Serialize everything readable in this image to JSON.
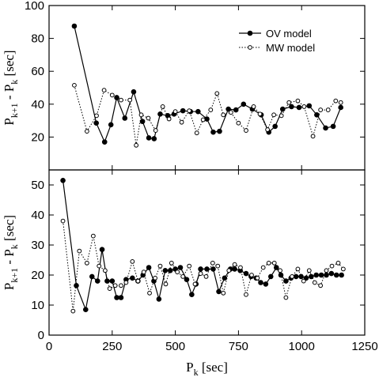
{
  "chart_data": [
    {
      "type": "line",
      "panel": "top",
      "ylabel": {
        "main": "P",
        "sub1": "k+1",
        "mid": " - P",
        "sub2": "k",
        "unit": " [sec]"
      },
      "xlim": [
        0,
        1250
      ],
      "ylim": [
        0,
        100
      ],
      "y_ticks": [
        0,
        20,
        40,
        60,
        80,
        100
      ],
      "legend": {
        "position": "top-right",
        "entries": [
          "OV model",
          "MW model"
        ]
      },
      "series": [
        {
          "name": "OV model",
          "style": "solid line, filled circles",
          "x": [
            100,
            187,
            220,
            245,
            268,
            300,
            335,
            370,
            395,
            416,
            440,
            470,
            495,
            530,
            560,
            590,
            625,
            650,
            675,
            710,
            740,
            770,
            805,
            840,
            870,
            895,
            925,
            960,
            990,
            1030,
            1060,
            1095,
            1125,
            1155
          ],
          "y": [
            87.5,
            28.5,
            17,
            27.5,
            44,
            31.5,
            47.5,
            29.5,
            19.5,
            19,
            34,
            33,
            34,
            36,
            35.5,
            35.5,
            31,
            23,
            23.5,
            37,
            36.5,
            40,
            37,
            33.5,
            23,
            26.5,
            37,
            38.5,
            38,
            39,
            33.5,
            25.5,
            26.5,
            38
          ]
        },
        {
          "name": "MW model",
          "style": "dotted line, open circles",
          "x": [
            100,
            150,
            188,
            218,
            250,
            285,
            320,
            345,
            365,
            393,
            422,
            450,
            475,
            500,
            525,
            555,
            585,
            610,
            640,
            665,
            690,
            720,
            750,
            780,
            810,
            835,
            865,
            890,
            920,
            950,
            985,
            1010,
            1045,
            1075,
            1105,
            1135,
            1155
          ],
          "y": [
            51.5,
            23.5,
            33,
            48.5,
            45.5,
            42.5,
            42.5,
            15,
            33.5,
            31.5,
            24,
            38.5,
            31,
            35.5,
            29,
            36,
            22.5,
            30.5,
            36.5,
            46.5,
            33.5,
            35,
            28.5,
            24,
            38.5,
            34,
            24.5,
            33.5,
            33,
            41,
            42,
            38.5,
            20.5,
            36.5,
            36.5,
            42,
            41
          ]
        }
      ]
    },
    {
      "type": "line",
      "panel": "bottom",
      "xlabel": {
        "main": "P",
        "sub": "k",
        "unit": " [sec]"
      },
      "ylabel": {
        "main": "P",
        "sub1": "k+1",
        "mid": " - P",
        "sub2": "k",
        "unit": " [sec]"
      },
      "xlim": [
        0,
        1250
      ],
      "ylim": [
        0,
        55
      ],
      "x_ticks": [
        0,
        250,
        500,
        750,
        1000,
        1250
      ],
      "y_ticks": [
        0,
        10,
        20,
        30,
        40,
        50
      ],
      "series": [
        {
          "name": "OV model",
          "style": "solid line, filled circles",
          "x": [
            55,
            108,
            145,
            170,
            192,
            210,
            230,
            250,
            268,
            285,
            305,
            330,
            352,
            372,
            395,
            415,
            435,
            460,
            480,
            500,
            520,
            545,
            565,
            582,
            600,
            625,
            650,
            672,
            695,
            718,
            735,
            757,
            780,
            800,
            820,
            838,
            858,
            878,
            900,
            918,
            938,
            958,
            978,
            998,
            1018,
            1038,
            1058,
            1078,
            1098,
            1118,
            1138,
            1158
          ],
          "y": [
            51.5,
            16.5,
            8.5,
            19.5,
            18,
            28.5,
            18,
            18,
            12.5,
            12.5,
            18.5,
            19,
            18,
            20,
            22.5,
            18,
            12,
            21.5,
            21.5,
            22,
            22.5,
            18.5,
            13.5,
            17,
            22,
            22,
            22,
            14.5,
            19,
            22,
            22,
            21.5,
            20.5,
            19.5,
            19,
            17.5,
            17,
            19.5,
            22.5,
            20,
            18,
            19,
            19.5,
            19.5,
            19,
            19.5,
            20,
            20,
            20,
            20.5,
            20,
            20
          ]
        },
        {
          "name": "MW model",
          "style": "dotted line, open circles",
          "x": [
            55,
            95,
            120,
            150,
            175,
            198,
            222,
            240,
            262,
            285,
            305,
            330,
            352,
            375,
            398,
            420,
            440,
            462,
            485,
            508,
            530,
            555,
            578,
            600,
            622,
            648,
            668,
            690,
            712,
            735,
            758,
            780,
            802,
            825,
            848,
            870,
            892,
            915,
            938,
            962,
            985,
            1008,
            1030,
            1052,
            1075,
            1098,
            1120,
            1145,
            1165
          ],
          "y": [
            38,
            8,
            28,
            24,
            33,
            23,
            21.5,
            15.5,
            16.5,
            16.5,
            17.5,
            24.5,
            18,
            21,
            14,
            19,
            23,
            17,
            24,
            21,
            19.5,
            23,
            17,
            20.5,
            19.5,
            24,
            23,
            14,
            21.5,
            23.5,
            22.5,
            13.5,
            20,
            19,
            22.5,
            24,
            24,
            21.5,
            12.5,
            19.5,
            22,
            18,
            21.5,
            17.5,
            16.5,
            21.5,
            23,
            24,
            22
          ]
        }
      ]
    }
  ]
}
